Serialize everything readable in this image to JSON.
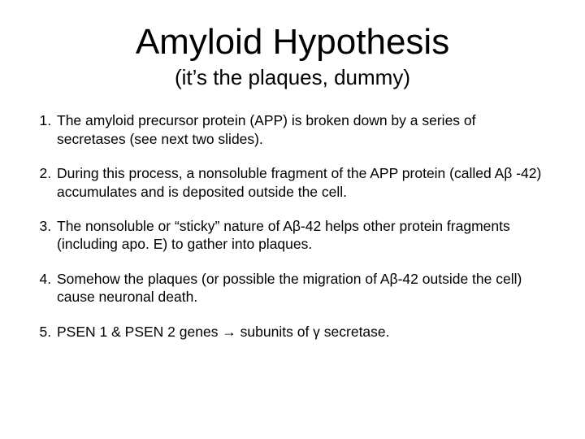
{
  "slide": {
    "title": "Amyloid Hypothesis",
    "subtitle": "(it’s the plaques, dummy)",
    "title_fontsize": 44,
    "subtitle_fontsize": 26,
    "body_fontsize": 17.5,
    "background_color": "#ffffff",
    "text_color": "#000000",
    "font_family": "Arial",
    "points": [
      "The amyloid precursor protein (APP) is broken down by a series of secretases (see next two slides).",
      "During this process, a nonsoluble fragment of the APP protein (called Aβ -42) accumulates and is deposited outside the cell.",
      "The nonsoluble or “sticky” nature of Aβ-42 helps other protein fragments (including apo. E) to gather into plaques.",
      "Somehow the plaques (or possible the migration of Aβ-42 outside the cell) cause neuronal death.",
      "PSEN 1 & PSEN 2 genes → subunits of γ secretase."
    ]
  }
}
